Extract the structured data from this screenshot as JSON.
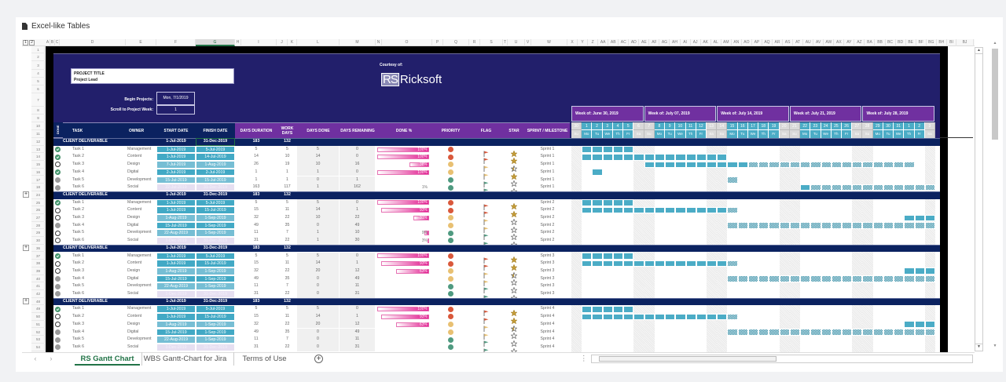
{
  "app": {
    "title": "Excel-like Tables",
    "doc_icon": "document-icon"
  },
  "grid": {
    "outline_levels": [
      "1",
      "2"
    ],
    "column_letters": [
      "A",
      "B",
      "C",
      "D",
      "E",
      "F",
      "G",
      "H",
      "I",
      "J",
      "K",
      "L",
      "M",
      "N",
      "O",
      "P",
      "Q",
      "R",
      "S",
      "T",
      "U",
      "V",
      "W",
      "X",
      "Y",
      "Z",
      "AA",
      "AB",
      "AC",
      "AD",
      "AE",
      "AF",
      "AG",
      "AH",
      "AI",
      "AJ",
      "AK",
      "AL",
      "AM",
      "AN",
      "AO",
      "AP",
      "AQ",
      "AR",
      "AS",
      "AT",
      "AU",
      "AV",
      "AW",
      "AX",
      "AY",
      "AZ",
      "BA",
      "BB",
      "BC",
      "BD",
      "BE",
      "BF",
      "BG",
      "BH",
      "BI",
      "BJ"
    ],
    "selected_column": "G",
    "top_rows": [
      "1",
      "2",
      "3",
      "4",
      "5",
      "6",
      "7",
      "8",
      "9",
      "10",
      "11"
    ]
  },
  "sheet": {
    "project_title": "PROJECT TITLE",
    "project_lead": "Project Lead",
    "courtesy": "Courtesy of:",
    "logo_mark": "RS",
    "logo_text": "Ricksoft",
    "begin_label": "Begin Projects:",
    "begin_value": "Mon, 7/1/2019",
    "scroll_label": "Scroll to Project Week:",
    "scroll_value": "1",
    "headers": [
      "DONE",
      "TASK",
      "OWNER",
      "START DATE",
      "FINISH DATE",
      "DAYS DURATION",
      "WORK DAYS",
      "DAYS DONE",
      "DAYS REMAINING",
      "DONE %",
      "PRIORITY",
      "FLAG",
      "STAR",
      "SPRINT / MILESTONE"
    ],
    "weeks": [
      "Week of: June 30, 2019",
      "Week of: July 07, 2019",
      "Week of: July 14, 2019",
      "Week of: July 21, 2019",
      "Week of: July 28, 2019"
    ],
    "days": [
      "30",
      "1",
      "2",
      "3",
      "4",
      "5",
      "6",
      "7",
      "8",
      "9",
      "10",
      "11",
      "12",
      "13",
      "14",
      "15",
      "16",
      "17",
      "18",
      "19",
      "20",
      "21",
      "22",
      "23",
      "24",
      "25",
      "26",
      "27",
      "28",
      "29",
      "30",
      "31",
      "1",
      "2",
      "3"
    ],
    "weekdays": [
      "Su",
      "Mo",
      "Tu",
      "We",
      "Th",
      "Fr",
      "Sa"
    ],
    "colors": {
      "navy": "#0b2260",
      "purple": "#7030a0",
      "title_bg": "#221f6b",
      "teal": "#4bacc6",
      "magenta": "#e0168c",
      "high": "#d9583b",
      "medium": "#e8c072",
      "low": "#4f9a80",
      "star_gold": "#c9a13b"
    },
    "blocks": [
      {
        "header_row": "12",
        "row_numbers": [
          "13",
          "14",
          "15",
          "16",
          "17",
          "18"
        ],
        "header": {
          "label": "CLIENT DELIVERABLE",
          "start": "1-Jul-2019",
          "finish": "31-Dec-2019",
          "duration": "183",
          "work_days": "132"
        },
        "tasks": [
          {
            "done": "check",
            "task": "Task 1",
            "owner": "Management",
            "start": "1-Jul-2019",
            "finish": "5-Jul-2019",
            "duration": "5",
            "work_days": "5",
            "days_done": "5",
            "days_remaining": "0",
            "done_pct": 100,
            "done_pct_label": "100%",
            "priority": "high",
            "star": "gold",
            "sprint": "Sprint 1"
          },
          {
            "done": "check",
            "task": "Task 2",
            "owner": "Content",
            "start": "1-Jul-2019",
            "finish": "14-Jul-2019",
            "duration": "14",
            "work_days": "10",
            "days_done": "14",
            "days_remaining": "0",
            "done_pct": 100,
            "done_pct_label": "100%",
            "priority": "high",
            "star": "gold",
            "sprint": "Sprint 1"
          },
          {
            "done": "empty",
            "task": "Task 3",
            "owner": "Design",
            "start": "7-Jul-2019",
            "finish": "1-Aug-2019",
            "duration": "26",
            "work_days": "19",
            "days_done": "10",
            "days_remaining": "16",
            "done_pct": 38,
            "done_pct_label": "38%",
            "priority": "medium",
            "star": "half",
            "sprint": "Sprint 1"
          },
          {
            "done": "check",
            "task": "Task 4",
            "owner": "Digital",
            "start": "2-Jul-2019",
            "finish": "2-Jul-2019",
            "duration": "1",
            "work_days": "1",
            "days_done": "1",
            "days_remaining": "0",
            "done_pct": 100,
            "done_pct_label": "100%",
            "priority": "medium",
            "star": "gold",
            "sprint": "Sprint 1"
          },
          {
            "done": "grey",
            "task": "Task 5",
            "owner": "Development",
            "start": "15-Jul-2019",
            "finish": "15-Jul-2019",
            "duration": "1",
            "work_days": "1",
            "days_done": "0",
            "days_remaining": "1",
            "done_pct": 0,
            "done_pct_label": "",
            "priority": "low",
            "star": "outline",
            "sprint": "Sprint 1"
          },
          {
            "done": "grey",
            "task": "Task 6",
            "owner": "Social",
            "start": "22-Jul-2019",
            "finish": "31-Dec-2019",
            "duration": "163",
            "work_days": "117",
            "days_done": "1",
            "days_remaining": "162",
            "done_pct": 1,
            "done_pct_label": "1%",
            "priority": "low",
            "star": "outline",
            "sprint": "Sprint 1"
          }
        ]
      },
      {
        "header_row": "24",
        "row_numbers": [
          "25",
          "26",
          "27",
          "28",
          "29",
          "30"
        ],
        "header": {
          "label": "CLIENT DELIVERABLE",
          "start": "1-Jul-2019",
          "finish": "31-Dec-2019",
          "duration": "183",
          "work_days": "132"
        },
        "tasks": [
          {
            "done": "check",
            "task": "Task 1",
            "owner": "Management",
            "start": "1-Jul-2019",
            "finish": "5-Jul-2019",
            "duration": "5",
            "work_days": "5",
            "days_done": "5",
            "days_remaining": "0",
            "done_pct": 100,
            "done_pct_label": "100%",
            "priority": "high",
            "star": "gold",
            "sprint": "Sprint 2"
          },
          {
            "done": "empty",
            "task": "Task 2",
            "owner": "Content",
            "start": "1-Jul-2019",
            "finish": "15-Jul-2019",
            "duration": "15",
            "work_days": "11",
            "days_done": "14",
            "days_remaining": "1",
            "done_pct": 93,
            "done_pct_label": "93%",
            "priority": "high",
            "star": "gold",
            "sprint": "Sprint 2"
          },
          {
            "done": "empty",
            "task": "Task 3",
            "owner": "Design",
            "start": "1-Aug-2019",
            "finish": "1-Sep-2019",
            "duration": "32",
            "work_days": "22",
            "days_done": "10",
            "days_remaining": "22",
            "done_pct": 31,
            "done_pct_label": "31%",
            "priority": "medium",
            "star": "outline",
            "sprint": "Sprint 2"
          },
          {
            "done": "grey",
            "task": "Task 4",
            "owner": "Digital",
            "start": "15-Jul-2019",
            "finish": "1-Sep-2019",
            "duration": "49",
            "work_days": "35",
            "days_done": "0",
            "days_remaining": "49",
            "done_pct": 0,
            "done_pct_label": "",
            "priority": "medium",
            "star": "outline",
            "sprint": "Sprint 2"
          },
          {
            "done": "empty",
            "task": "Task 5",
            "owner": "Development",
            "start": "22-Aug-2019",
            "finish": "1-Sep-2019",
            "duration": "11",
            "work_days": "7",
            "days_done": "1",
            "days_remaining": "10",
            "done_pct": 9,
            "done_pct_label": "9%",
            "priority": "low",
            "star": "outline",
            "sprint": "Sprint 2"
          },
          {
            "done": "empty",
            "task": "Task 6",
            "owner": "Social",
            "start": "1-Dec-2019",
            "finish": "31-Dec-2019",
            "duration": "31",
            "work_days": "22",
            "days_done": "1",
            "days_remaining": "30",
            "done_pct": 3,
            "done_pct_label": "3%",
            "priority": "low",
            "star": "outline",
            "sprint": "Sprint 2"
          }
        ]
      },
      {
        "header_row": "36",
        "row_numbers": [
          "37",
          "38",
          "39",
          "40",
          "41",
          "42"
        ],
        "header": {
          "label": "CLIENT DELIVERABLE",
          "start": "1-Jul-2019",
          "finish": "31-Dec-2019",
          "duration": "183",
          "work_days": "132"
        },
        "tasks": [
          {
            "done": "check",
            "task": "Task 1",
            "owner": "Management",
            "start": "1-Jul-2019",
            "finish": "5-Jul-2019",
            "duration": "5",
            "work_days": "5",
            "days_done": "5",
            "days_remaining": "0",
            "done_pct": 100,
            "done_pct_label": "100%",
            "priority": "high",
            "star": "gold",
            "sprint": "Sprint 3"
          },
          {
            "done": "empty",
            "task": "Task 2",
            "owner": "Content",
            "start": "1-Jul-2019",
            "finish": "15-Jul-2019",
            "duration": "15",
            "work_days": "11",
            "days_done": "14",
            "days_remaining": "1",
            "done_pct": 93,
            "done_pct_label": "93%",
            "priority": "high",
            "star": "gold",
            "sprint": "Sprint 3"
          },
          {
            "done": "empty",
            "task": "Task 3",
            "owner": "Design",
            "start": "1-Aug-2019",
            "finish": "1-Sep-2019",
            "duration": "32",
            "work_days": "22",
            "days_done": "20",
            "days_remaining": "12",
            "done_pct": 63,
            "done_pct_label": "63%",
            "priority": "medium",
            "star": "half",
            "sprint": "Sprint 3"
          },
          {
            "done": "grey",
            "task": "Task 4",
            "owner": "Digital",
            "start": "15-Jul-2019",
            "finish": "1-Sep-2019",
            "duration": "49",
            "work_days": "35",
            "days_done": "0",
            "days_remaining": "49",
            "done_pct": 0,
            "done_pct_label": "",
            "priority": "medium",
            "star": "outline",
            "sprint": "Sprint 3"
          },
          {
            "done": "grey",
            "task": "Task 5",
            "owner": "Development",
            "start": "22-Aug-2019",
            "finish": "1-Sep-2019",
            "duration": "11",
            "work_days": "7",
            "days_done": "0",
            "days_remaining": "11",
            "done_pct": 0,
            "done_pct_label": "",
            "priority": "low",
            "star": "outline",
            "sprint": "Sprint 3"
          },
          {
            "done": "grey",
            "task": "Task 6",
            "owner": "Social",
            "start": "1-Dec-2019",
            "finish": "31-Dec-2019",
            "duration": "31",
            "work_days": "22",
            "days_done": "0",
            "days_remaining": "31",
            "done_pct": 0,
            "done_pct_label": "",
            "priority": "low",
            "star": "outline",
            "sprint": "Sprint 3"
          }
        ]
      },
      {
        "header_row": "48",
        "row_numbers": [
          "49",
          "50",
          "51",
          "52",
          "53",
          "54"
        ],
        "header": {
          "label": "CLIENT DELIVERABLE",
          "start": "1-Jul-2019",
          "finish": "31-Dec-2019",
          "duration": "183",
          "work_days": "132"
        },
        "tasks": [
          {
            "done": "check",
            "task": "Task 1",
            "owner": "Management",
            "start": "1-Jul-2019",
            "finish": "5-Jul-2019",
            "duration": "5",
            "work_days": "5",
            "days_done": "5",
            "days_remaining": "0",
            "done_pct": 100,
            "done_pct_label": "100%",
            "priority": "high",
            "star": "gold",
            "sprint": "Sprint 4"
          },
          {
            "done": "empty",
            "task": "Task 2",
            "owner": "Content",
            "start": "1-Jul-2019",
            "finish": "15-Jul-2019",
            "duration": "15",
            "work_days": "11",
            "days_done": "14",
            "days_remaining": "1",
            "done_pct": 93,
            "done_pct_label": "93%",
            "priority": "high",
            "star": "gold",
            "sprint": "Sprint 4"
          },
          {
            "done": "empty",
            "task": "Task 3",
            "owner": "Design",
            "start": "1-Aug-2019",
            "finish": "1-Sep-2019",
            "duration": "32",
            "work_days": "22",
            "days_done": "20",
            "days_remaining": "12",
            "done_pct": 63,
            "done_pct_label": "63%",
            "priority": "medium",
            "star": "half",
            "sprint": "Sprint 4"
          },
          {
            "done": "grey",
            "task": "Task 4",
            "owner": "Digital",
            "start": "15-Jul-2019",
            "finish": "1-Sep-2019",
            "duration": "49",
            "work_days": "35",
            "days_done": "0",
            "days_remaining": "49",
            "done_pct": 0,
            "done_pct_label": "",
            "priority": "medium",
            "star": "outline",
            "sprint": "Sprint 4"
          },
          {
            "done": "grey",
            "task": "Task 5",
            "owner": "Development",
            "start": "22-Aug-2019",
            "finish": "1-Sep-2019",
            "duration": "11",
            "work_days": "7",
            "days_done": "0",
            "days_remaining": "11",
            "done_pct": 0,
            "done_pct_label": "",
            "priority": "low",
            "star": "outline",
            "sprint": "Sprint 4"
          },
          {
            "done": "grey",
            "task": "Task 6",
            "owner": "Social",
            "start": "1-Dec-2019",
            "finish": "31-Dec-2019",
            "duration": "31",
            "work_days": "22",
            "days_done": "0",
            "days_remaining": "31",
            "done_pct": 0,
            "done_pct_label": "",
            "priority": "low",
            "star": "outline",
            "sprint": "Sprint 4"
          }
        ]
      }
    ]
  },
  "tabs": [
    {
      "label": "RS Gantt Chart",
      "active": true
    },
    {
      "label": "WBS Gantt-Chart for Jira",
      "active": false
    },
    {
      "label": "Terms of Use",
      "active": false
    }
  ],
  "tab_nav": {
    "prev": "‹",
    "next": "›",
    "add": "+",
    "more": "⋮"
  }
}
